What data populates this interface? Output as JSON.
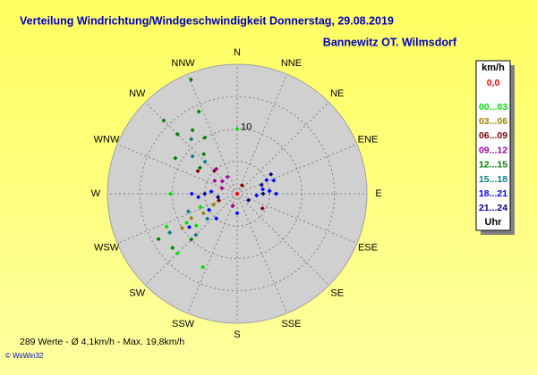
{
  "chart_data": {
    "type": "polar-scatter",
    "title": "Verteilung Windrichtung/Windgeschwindigkeit  Donnerstag, 29.08.2019",
    "subtitle": "Bannewitz OT. Wilmsdorf",
    "directions": [
      "N",
      "NNE",
      "NE",
      "ENE",
      "E",
      "ESE",
      "SE",
      "SSE",
      "S",
      "SSW",
      "SW",
      "WSW",
      "W",
      "WNW",
      "NW",
      "NNW"
    ],
    "rlim": [
      0,
      20
    ],
    "rgrid": [
      5,
      10,
      15
    ],
    "rticks": [
      10
    ],
    "legend_title": "km/h",
    "legend_footer": "Uhr",
    "series": [
      {
        "name": "0,0",
        "color": "#ff0000",
        "x": [
          0,
          0,
          0
        ],
        "values": [
          0,
          0,
          0
        ]
      },
      {
        "name": "00...03",
        "color": "#00e000",
        "x": [
          270,
          240,
          245,
          225,
          205,
          232,
          0,
          250
        ],
        "values": [
          10.3,
          9,
          12,
          13,
          12.5,
          8,
          10,
          6
        ]
      },
      {
        "name": "03...06",
        "color": "#a08000",
        "x": [
          240,
          242,
          238,
          245,
          250
        ],
        "values": [
          6,
          8,
          10,
          4,
          3
        ]
      },
      {
        "name": "06...09",
        "color": "#800000",
        "x": [
          300,
          315,
          120,
          200,
          30,
          250
        ],
        "values": [
          7,
          5,
          4.5,
          2,
          1.5,
          3
        ]
      },
      {
        "name": "09...12",
        "color": "#a000a0",
        "x": [
          300,
          310,
          320,
          290,
          330,
          200
        ],
        "values": [
          4,
          3,
          5,
          2.5,
          3,
          2
        ]
      },
      {
        "name": "12...15",
        "color": "#008000",
        "x": [
          338,
          315,
          315,
          325,
          330,
          335,
          320,
          300,
          305,
          225,
          230,
          240
        ],
        "values": [
          19,
          13,
          16,
          12,
          10,
          14,
          8,
          11,
          7,
          10,
          13,
          14
        ]
      },
      {
        "name": "15...18",
        "color": "#008080",
        "x": [
          310,
          320,
          315,
          250,
          240,
          225,
          230
        ],
        "values": [
          9,
          11,
          7,
          8,
          12,
          9,
          6
        ]
      },
      {
        "name": "18...21",
        "color": "#0000ff",
        "x": [
          90,
          85,
          80,
          70,
          65,
          270,
          265,
          275,
          95,
          235,
          220,
          180,
          240
        ],
        "values": [
          6,
          5,
          4,
          6,
          5,
          7,
          6,
          4,
          3,
          9,
          5,
          3,
          5
        ]
      },
      {
        "name": "21...24",
        "color": "#000080",
        "x": [
          60,
          70,
          90,
          270,
          260,
          120
        ],
        "values": [
          6,
          4,
          4,
          5,
          3,
          2
        ]
      }
    ],
    "footer": "289 Werte   -   Ø 4,1km/h  -  Max. 19,8km/h",
    "copyright": "© WsWin32"
  }
}
